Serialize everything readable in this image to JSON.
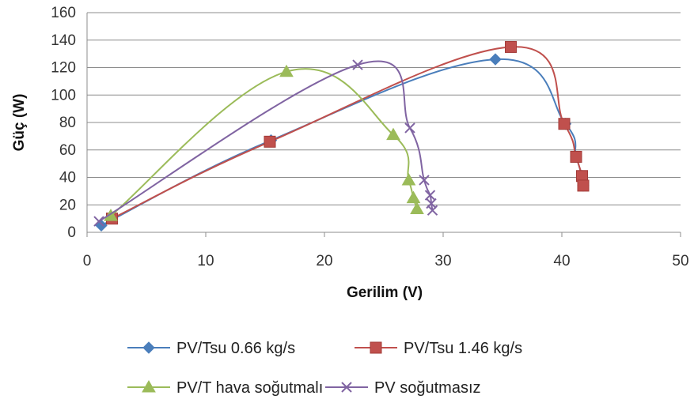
{
  "chart_data": {
    "type": "line",
    "xlabel": "Gerilim (V)",
    "ylabel": "Güç (W)",
    "xlim": [
      0,
      50
    ],
    "ylim": [
      0,
      160
    ],
    "x_ticks": [
      "0",
      "10",
      "20",
      "30",
      "40",
      "50"
    ],
    "y_ticks": [
      "0",
      "20",
      "40",
      "60",
      "80",
      "100",
      "120",
      "140",
      "160"
    ],
    "grid": "horizontal",
    "legend_position": "bottom",
    "series": [
      {
        "name": "PV/Tsu 0.66 kg/s",
        "color": "#4a7ebb",
        "marker": "diamond",
        "x": [
          1.2,
          15.5,
          34.4,
          40.3,
          41.2,
          41.7,
          41.8
        ],
        "y": [
          5,
          67,
          126,
          79,
          55,
          41,
          34
        ]
      },
      {
        "name": "PV/Tsu 1.46 kg/s",
        "color": "#c0504d",
        "marker": "square",
        "x": [
          2.1,
          15.4,
          35.7,
          40.2,
          41.2,
          41.7,
          41.8
        ],
        "y": [
          10,
          66,
          135,
          79,
          55,
          41,
          34
        ]
      },
      {
        "name": "PV/T hava soğutmalı",
        "color": "#9bbb59",
        "marker": "triangle",
        "x": [
          2.0,
          16.8,
          25.8,
          27.1,
          27.5,
          27.8
        ],
        "y": [
          12,
          117,
          71,
          38,
          25,
          17
        ]
      },
      {
        "name": "PV soğutmasız",
        "color": "#8064a2",
        "marker": "x",
        "x": [
          1.0,
          22.8,
          27.2,
          28.4,
          28.9,
          29.0,
          29.1
        ],
        "y": [
          8,
          122,
          76,
          38,
          27,
          21,
          16
        ]
      }
    ]
  }
}
